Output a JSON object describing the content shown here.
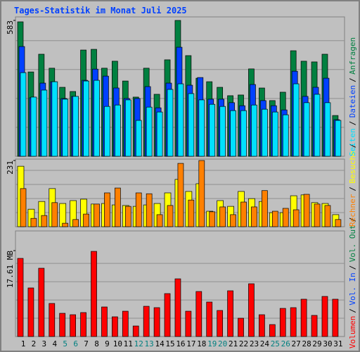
{
  "chart_data": [
    {
      "type": "bar",
      "title": "Tages-Statistik im Monat Juli 2025",
      "ylim": [
        0,
        583
      ],
      "yticks": [
        583
      ],
      "series": [
        {
          "name": "Anfragen",
          "color": "#008040",
          "values": [
            577,
            362,
            438,
            378,
            296,
            278,
            456,
            459,
            378,
            408,
            323,
            254,
            378,
            266,
            414,
            583,
            432,
            335,
            320,
            296,
            260,
            263,
            375,
            293,
            239,
            275,
            453,
            408,
            405,
            438,
            175
          ]
        },
        {
          "name": "Dateien",
          "color": "#0040ff",
          "values": [
            471,
            251,
            314,
            320,
            248,
            257,
            326,
            374,
            344,
            293,
            248,
            248,
            299,
            208,
            314,
            468,
            305,
            338,
            245,
            245,
            230,
            217,
            308,
            239,
            217,
            199,
            365,
            257,
            296,
            335,
            157
          ]
        },
        {
          "name": "Seiten",
          "color": "#00e0ff",
          "values": [
            359,
            254,
            284,
            320,
            245,
            257,
            323,
            326,
            214,
            220,
            242,
            154,
            211,
            190,
            287,
            311,
            269,
            242,
            223,
            214,
            196,
            196,
            220,
            202,
            190,
            178,
            311,
            230,
            266,
            230,
            154
          ]
        }
      ]
    },
    {
      "type": "bar",
      "ylim": [
        0,
        231
      ],
      "yticks": [
        231
      ],
      "series": [
        {
          "name": "Besuche",
          "color": "#ffff00",
          "values": [
            211,
            61,
            88,
            133,
            81,
            91,
            96,
            79,
            81,
            76,
            74,
            71,
            76,
            81,
            118,
            165,
            123,
            150,
            54,
            91,
            71,
            123,
            98,
            88,
            49,
            49,
            108,
            111,
            84,
            81,
            42
          ]
        },
        {
          "name": "Rechner",
          "color": "#ff8000",
          "values": [
            133,
            29,
            39,
            84,
            12,
            25,
            44,
            79,
            118,
            135,
            71,
            118,
            115,
            42,
            74,
            221,
            93,
            231,
            52,
            69,
            42,
            86,
            69,
            126,
            54,
            64,
            59,
            113,
            79,
            74,
            25
          ]
        }
      ]
    },
    {
      "type": "bar",
      "ylim": [
        0,
        17.61
      ],
      "yticks": [
        {
          "value": 17.61,
          "label": "17.61 MB"
        }
      ],
      "extra_legend": [
        {
          "name": "Vol. In",
          "color": "#0040ff"
        },
        {
          "name": "Vol. Out",
          "color": "#008040"
        }
      ],
      "series": [
        {
          "name": "Volumen",
          "color": "#ff0000",
          "values": [
            16.02,
            9.96,
            14.0,
            6.78,
            4.76,
            4.47,
            4.91,
            17.46,
            6.06,
            4.04,
            5.19,
            2.16,
            6.2,
            5.92,
            8.8,
            11.83,
            5.19,
            9.23,
            7.07,
            5.34,
            9.38,
            3.75,
            10.82,
            4.47,
            2.45,
            5.77,
            5.92,
            7.65,
            4.33,
            8.22,
            7.65
          ]
        }
      ],
      "categories": [
        "1",
        "2",
        "3",
        "4",
        "5",
        "6",
        "7",
        "8",
        "9",
        "10",
        "11",
        "12",
        "13",
        "14",
        "15",
        "16",
        "17",
        "18",
        "19",
        "20",
        "21",
        "22",
        "23",
        "24",
        "25",
        "26",
        "27",
        "28",
        "29",
        "30",
        "31"
      ],
      "category_colors": [
        "#000",
        "#000",
        "#000",
        "#000",
        "#008080",
        "#008080",
        "#000",
        "#000",
        "#000",
        "#000",
        "#000",
        "#008080",
        "#008080",
        "#000",
        "#000",
        "#000",
        "#000",
        "#000",
        "#008080",
        "#008080",
        "#000",
        "#000",
        "#000",
        "#000",
        "#008080",
        "#008080",
        "#000",
        "#000",
        "#000",
        "#000",
        "#000"
      ]
    }
  ]
}
